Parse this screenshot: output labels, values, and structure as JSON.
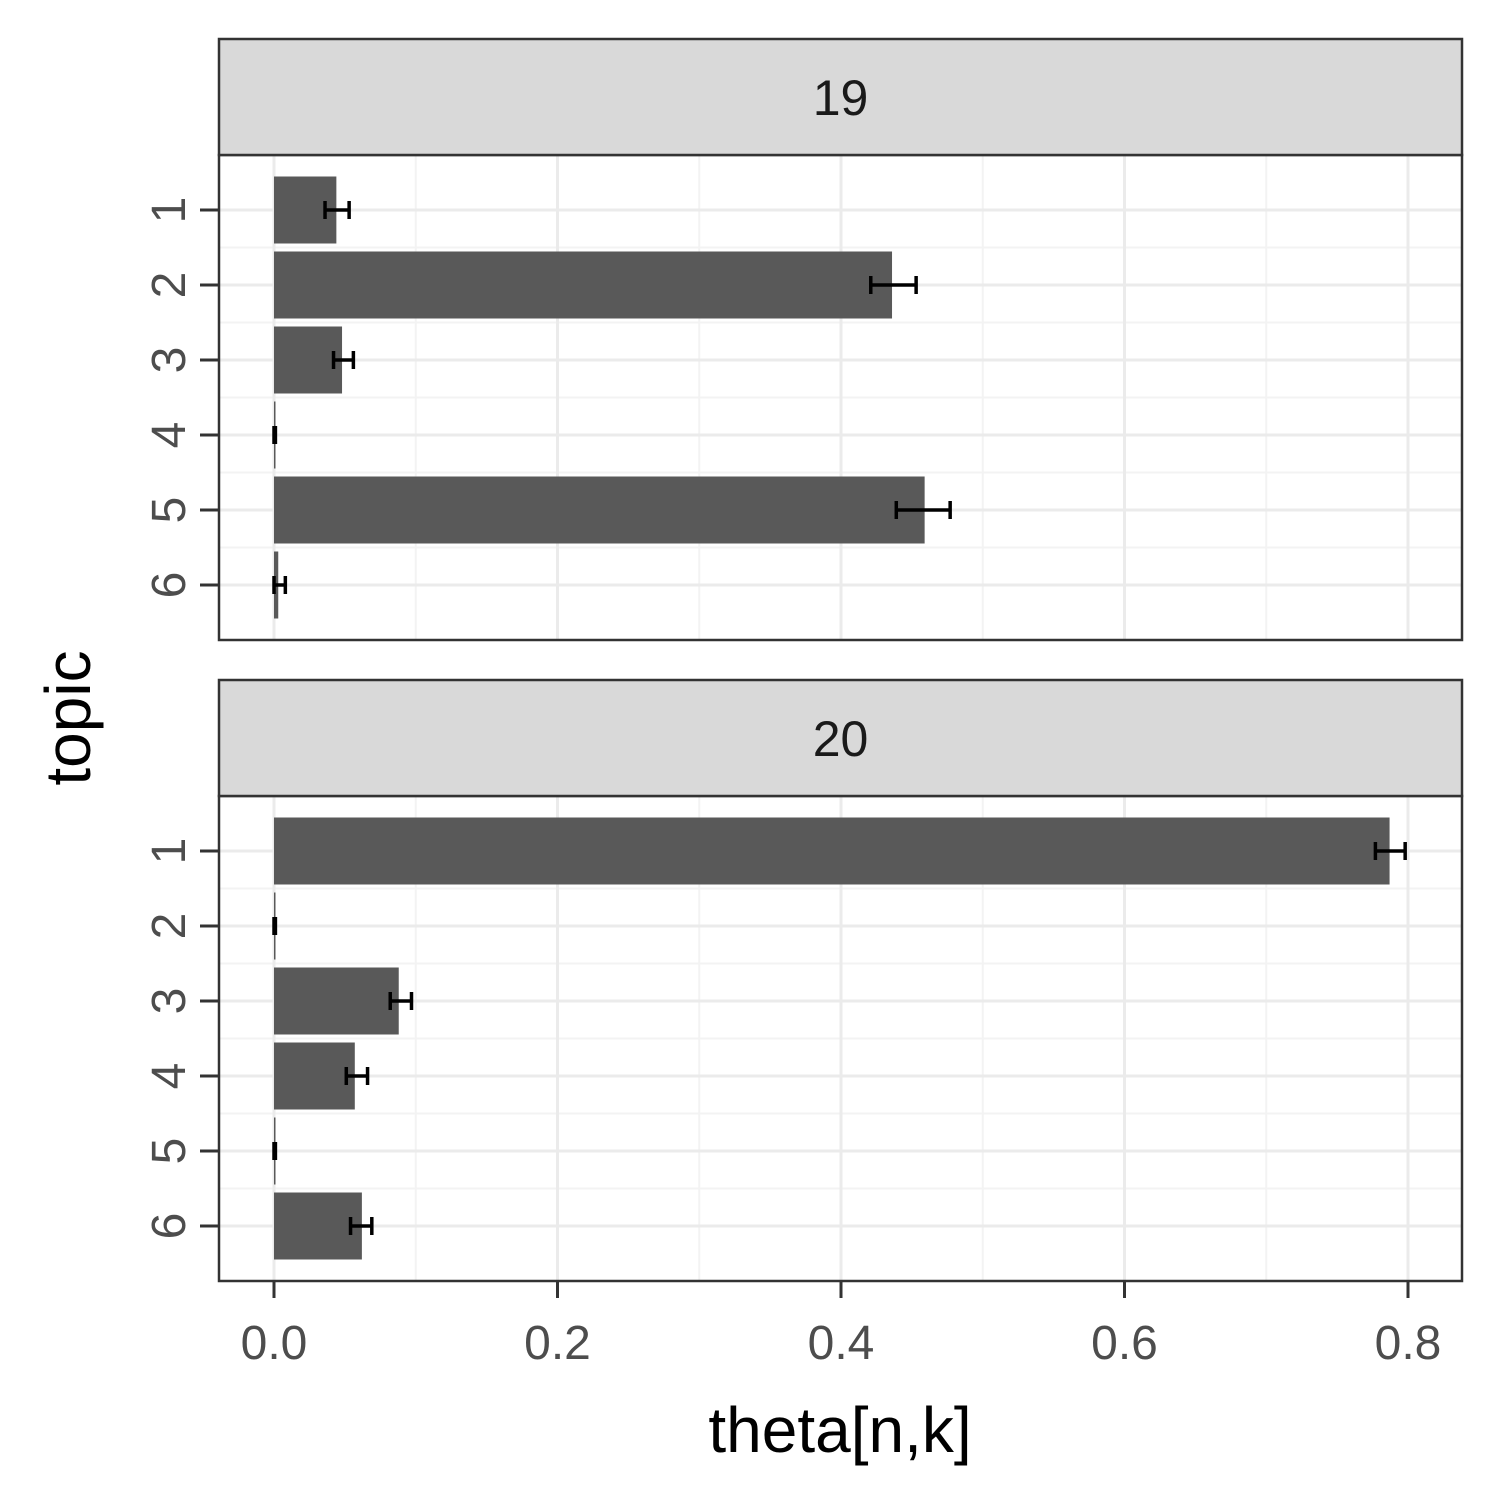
{
  "chart_data": {
    "type": "bar",
    "orientation": "horizontal",
    "xlabel": "theta[n,k]",
    "ylabel": "topic",
    "xlim": [
      -0.0385,
      0.8385
    ],
    "x_ticks": [
      "0.0",
      "0.2",
      "0.4",
      "0.6",
      "0.8"
    ],
    "x_tick_values": [
      0,
      0.2,
      0.4,
      0.6,
      0.8
    ],
    "categories": [
      "1",
      "2",
      "3",
      "4",
      "5",
      "6"
    ],
    "grid": true,
    "colors": {
      "bar": "#595959",
      "errorbar": "#000000",
      "strip": "#d9d9d9",
      "border": "#333333",
      "grid_major": "#ebebeb",
      "grid_minor": "#f3f3f3"
    },
    "panels": [
      {
        "label": "19",
        "values": [
          0.044,
          0.436,
          0.048,
          0.0005,
          0.459,
          0.003
        ],
        "errors": [
          [
            0.036,
            0.053
          ],
          [
            0.421,
            0.453
          ],
          [
            0.042,
            0.056
          ],
          [
            0.0,
            0.001
          ],
          [
            0.439,
            0.477
          ],
          [
            0.0,
            0.008
          ]
        ]
      },
      {
        "label": "20",
        "values": [
          0.787,
          0.0005,
          0.088,
          0.057,
          0.0005,
          0.062
        ],
        "errors": [
          [
            0.777,
            0.798
          ],
          [
            0.0,
            0.001
          ],
          [
            0.082,
            0.097
          ],
          [
            0.051,
            0.066
          ],
          [
            0.0,
            0.001
          ],
          [
            0.054,
            0.069
          ]
        ]
      }
    ]
  }
}
